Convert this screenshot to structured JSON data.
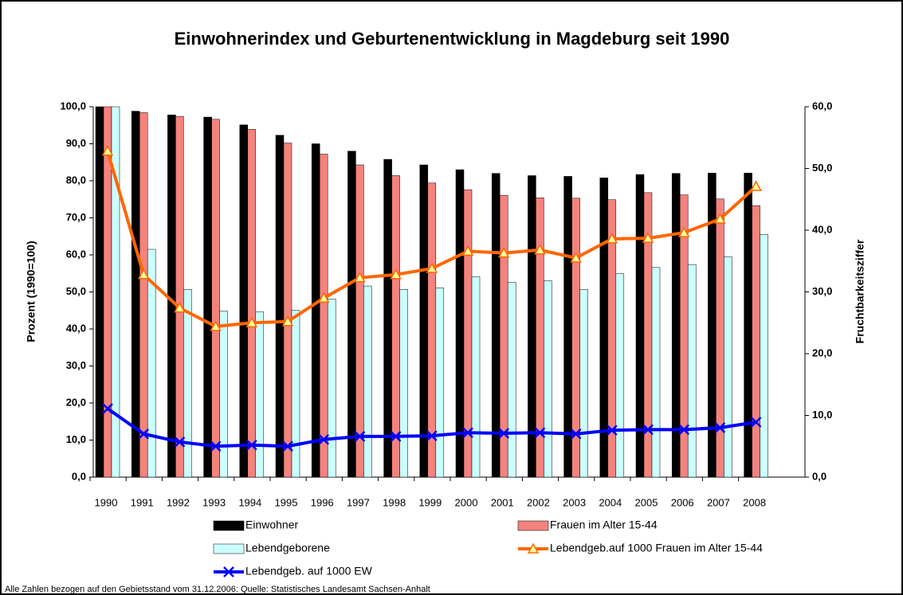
{
  "chart_data": {
    "type": "bar",
    "title": "Einwohnerindex und Geburtenentwicklung in Magdeburg seit 1990",
    "y_label": "Prozent (1990=100)",
    "y2_label": "Fruchtbarkeitsziffer",
    "footnote": "Alle Zahlen bezogen auf den Gebietsstand vom 31.12.2006: Quelle: Statistisches Landesamt Sachsen-Anhalt",
    "categories": [
      "1990",
      "1991",
      "1992",
      "1993",
      "1994",
      "1995",
      "1996",
      "1997",
      "1998",
      "1999",
      "2000",
      "2001",
      "2002",
      "2003",
      "2004",
      "2005",
      "2006",
      "2007",
      "2008"
    ],
    "ylim": [
      0,
      100
    ],
    "yticks": [
      {
        "value": 0,
        "label": "0,0"
      },
      {
        "value": 10,
        "label": "10,0"
      },
      {
        "value": 20,
        "label": "20,0"
      },
      {
        "value": 30,
        "label": "30,0"
      },
      {
        "value": 40,
        "label": "40,0"
      },
      {
        "value": 50,
        "label": "50,0"
      },
      {
        "value": 60,
        "label": "60,0"
      },
      {
        "value": 70,
        "label": "70,0"
      },
      {
        "value": 80,
        "label": "80,0"
      },
      {
        "value": 90,
        "label": "90,0"
      },
      {
        "value": 100,
        "label": "100,0"
      }
    ],
    "y2lim": [
      0,
      60
    ],
    "y2ticks": [
      {
        "value": 0,
        "label": "0,0"
      },
      {
        "value": 10,
        "label": "10,0"
      },
      {
        "value": 20,
        "label": "20,0"
      },
      {
        "value": 30,
        "label": "30,0"
      },
      {
        "value": 40,
        "label": "40,0"
      },
      {
        "value": 50,
        "label": "50,0"
      },
      {
        "value": 60,
        "label": "60,0"
      }
    ],
    "series": [
      {
        "name": "Einwohner",
        "type": "bar",
        "color": "#000000",
        "values": [
          100,
          98.8,
          97.8,
          97.2,
          95.1,
          92.3,
          90,
          88,
          85.8,
          84.3,
          83,
          82,
          81.4,
          81.2,
          80.8,
          81.7,
          82,
          82.1,
          82.1
        ]
      },
      {
        "name": "Frauen im Alter 15-44",
        "type": "bar",
        "color": "#f4827d",
        "values": [
          100,
          98.4,
          97.4,
          96.6,
          93.9,
          90.2,
          87.2,
          84.3,
          81.4,
          79.4,
          77.6,
          76.1,
          75.4,
          75.3,
          74.9,
          76.8,
          76.2,
          75.1,
          73.3
        ]
      },
      {
        "name": "Lebendgeborene",
        "type": "bar",
        "color": "#ccffff",
        "values": [
          100,
          61.5,
          50.7,
          44.8,
          44.6,
          45,
          48.1,
          51.6,
          50.7,
          51.1,
          54.1,
          52.6,
          53,
          50.7,
          54.9,
          56.6,
          57.4,
          59.5,
          65.5
        ]
      },
      {
        "name": "Lebendgeb.auf 1000 Frauen im Alter 15-44",
        "type": "line",
        "axis": "y2",
        "marker": "triangle",
        "color": "#ff6600",
        "values": [
          52.8,
          32.8,
          27.4,
          24.4,
          25,
          25.2,
          29,
          32.3,
          32.8,
          33.8,
          36.6,
          36.3,
          36.8,
          35.5,
          38.6,
          38.7,
          39.6,
          41.8,
          47.1
        ]
      },
      {
        "name": "Lebendgeb. auf 1000 EW",
        "type": "line",
        "axis": "y2",
        "marker": "x",
        "color": "#0000ff",
        "values": [
          11.1,
          7,
          5.7,
          5,
          5.2,
          5,
          6.1,
          6.6,
          6.6,
          6.7,
          7.2,
          7.1,
          7.2,
          7,
          7.6,
          7.7,
          7.7,
          8,
          8.9
        ]
      }
    ]
  }
}
